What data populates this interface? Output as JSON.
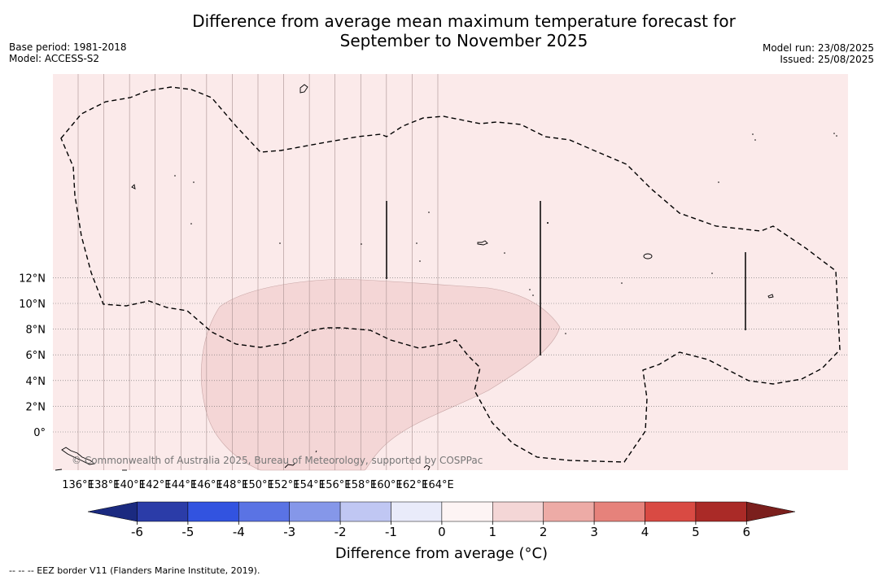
{
  "header": {
    "title_line1": "Difference from average mean maximum temperature forecast for",
    "title_line2": "September to November 2025",
    "base_period": "Base period: 1981-2018",
    "model": "Model: ACCESS-S2",
    "model_run": "Model run: 23/08/2025",
    "issued": "Issued: 25/08/2025"
  },
  "map": {
    "region_lon": [
      135,
      166
    ],
    "region_lat": [
      -1.5,
      14
    ],
    "lon_ticks": [
      "136°E",
      "138°E",
      "140°E",
      "142°E",
      "144°E",
      "146°E",
      "148°E",
      "150°E",
      "152°E",
      "154°E",
      "156°E",
      "158°E",
      "160°E",
      "162°E",
      "164°E"
    ],
    "lat_ticks": [
      "12°N",
      "10°N",
      "8°N",
      "6°N",
      "4°N",
      "2°N",
      "0°"
    ],
    "background_anomaly_color": "#fbeaea",
    "anomaly_region_color": "#f4d6d6",
    "watermark": "© Commonwealth of Australia 2025, Bureau of Meteorology, supported by COSPPac"
  },
  "colorbar": {
    "ticks": [
      "-6",
      "-5",
      "-4",
      "-3",
      "-2",
      "-1",
      "0",
      "1",
      "2",
      "3",
      "4",
      "5",
      "6"
    ],
    "colors": [
      "#2b3ca8",
      "#3253e0",
      "#5a73e4",
      "#8597e9",
      "#c0c7f3",
      "#e9ebfa",
      "#fdf4f4",
      "#f4d6d6",
      "#edaba6",
      "#e6827b",
      "#d94a43",
      "#aa2a27"
    ],
    "low_extend_color": "#1b2a80",
    "high_extend_color": "#7b1f1d",
    "label": "Difference from average (°C)"
  },
  "footer": {
    "legend_text": "--  --  -- EEZ border V11 (Flanders Marine Institute, 2019)."
  }
}
